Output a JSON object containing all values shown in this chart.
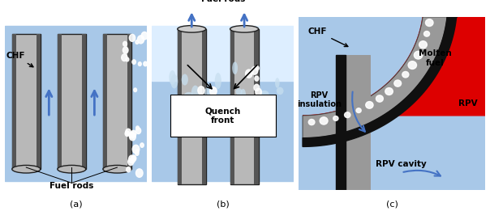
{
  "fig_width": 6.04,
  "fig_height": 2.61,
  "dpi": 100,
  "bg_color": "#ffffff",
  "light_blue": "#a8c8e8",
  "rod_gray": "#b8b8b8",
  "rod_edge": "#202020",
  "arrow_blue": "#4472c4",
  "quench_lightblue": "#c8dff0",
  "red_fuel": "#dd0000",
  "panel_labels": [
    "(a)",
    "(b)",
    "(c)"
  ]
}
